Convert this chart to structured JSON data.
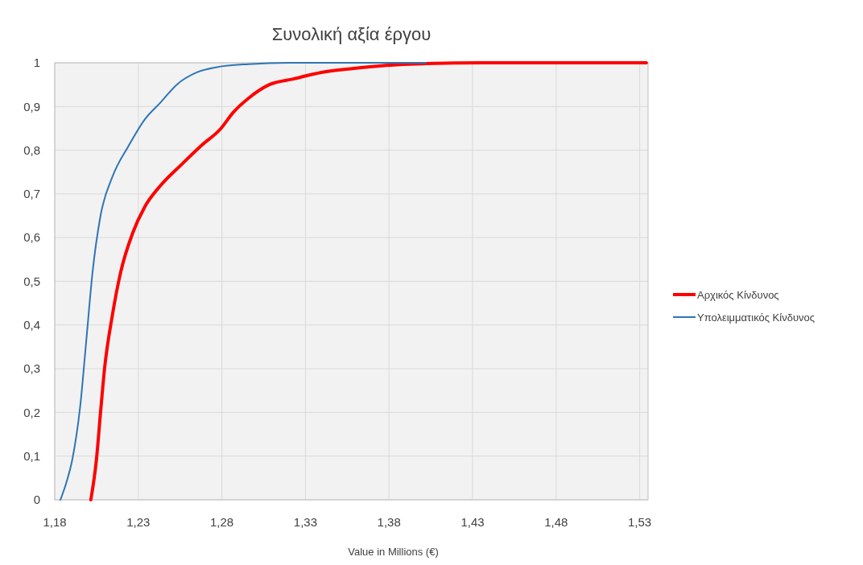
{
  "chart_data": {
    "type": "line",
    "title": "Συνολική αξία έργου",
    "xlabel": "Value  in Millions (€)",
    "xlim": [
      1.18,
      1.535
    ],
    "xticks": [
      {
        "value": 1.18,
        "label": "1,18"
      },
      {
        "value": 1.23,
        "label": "1,23"
      },
      {
        "value": 1.28,
        "label": "1,28"
      },
      {
        "value": 1.33,
        "label": "1,33"
      },
      {
        "value": 1.38,
        "label": "1,38"
      },
      {
        "value": 1.43,
        "label": "1,43"
      },
      {
        "value": 1.48,
        "label": "1,48"
      },
      {
        "value": 1.53,
        "label": "1,53"
      }
    ],
    "ylim": [
      0,
      1
    ],
    "yticks": [
      0,
      {
        "value": 0.1,
        "label": "0,1"
      },
      {
        "value": 0.2,
        "label": "0,2"
      },
      {
        "value": 0.3,
        "label": "0,3"
      },
      {
        "value": 0.4,
        "label": "0,4"
      },
      {
        "value": 0.5,
        "label": "0,5"
      },
      {
        "value": 0.6,
        "label": "0,6"
      },
      {
        "value": 0.7,
        "label": "0,7"
      },
      {
        "value": 0.8,
        "label": "0,8"
      },
      {
        "value": 0.9,
        "label": "0,9"
      },
      1
    ],
    "grid": true,
    "legend": "right",
    "line_style": "solid",
    "marker": "none",
    "series": [
      {
        "name": "Αρχικός Κίνδυνος",
        "color": "#ff0000",
        "x": [
          1.2016,
          1.205,
          1.2074,
          1.2098,
          1.2146,
          1.2194,
          1.2266,
          1.2338,
          1.2435,
          1.2555,
          1.2675,
          1.2795,
          1.2867,
          1.2963,
          1.3084,
          1.3228,
          1.3396,
          1.3589,
          1.378,
          1.402,
          1.436,
          1.534
        ],
        "values": [
          0,
          0.094,
          0.2,
          0.3,
          0.425,
          0.52,
          0.61,
          0.67,
          0.72,
          0.766,
          0.81,
          0.85,
          0.886,
          0.92,
          0.95,
          0.963,
          0.978,
          0.987,
          0.994,
          0.998,
          1,
          1
        ]
      },
      {
        "name": "Υπολειμματικός Κίνδυνος",
        "color": "#2e75b6",
        "x": [
          1.1834,
          1.187,
          1.1906,
          1.1954,
          1.199,
          1.2026,
          1.2074,
          1.2146,
          1.2242,
          1.2338,
          1.2435,
          1.253,
          1.265,
          1.277,
          1.296,
          1.32,
          1.402
        ],
        "values": [
          0,
          0.04,
          0.094,
          0.22,
          0.37,
          0.52,
          0.65,
          0.74,
          0.81,
          0.87,
          0.91,
          0.95,
          0.978,
          0.99,
          0.997,
          1,
          1
        ]
      }
    ]
  }
}
